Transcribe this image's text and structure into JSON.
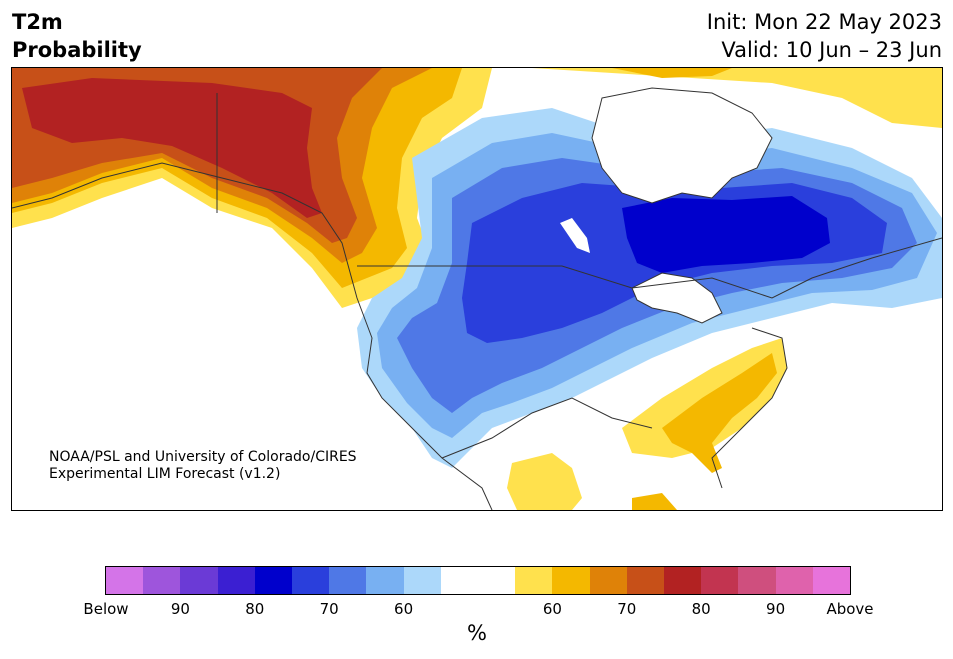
{
  "header": {
    "title_line1": "T2m",
    "title_line2": "Probability",
    "init": "Init: Mon 22 May 2023",
    "valid": "Valid: 10 Jun – 23 Jun"
  },
  "credit": {
    "line1": "NOAA/PSL and University of Colorado/CIRES",
    "line2": "Experimental LIM Forecast (v1.2)"
  },
  "legend": {
    "unit": "%",
    "colors": [
      "#d474e8",
      "#9e55dc",
      "#6b3ad6",
      "#3b1fd2",
      "#0000cc",
      "#2a3fdc",
      "#4f78e6",
      "#78b0f2",
      "#acd8fa",
      "#ffffff",
      "#ffffff",
      "#ffe14d",
      "#f4b800",
      "#df8208",
      "#c75018",
      "#b22222",
      "#c23450",
      "#cf4f7e",
      "#df62ac",
      "#e773db"
    ],
    "labels": [
      {
        "text": "Below",
        "pos": 0.0
      },
      {
        "text": "90",
        "pos": 0.1
      },
      {
        "text": "80",
        "pos": 0.2
      },
      {
        "text": "70",
        "pos": 0.3
      },
      {
        "text": "60",
        "pos": 0.4
      },
      {
        "text": "60",
        "pos": 0.6
      },
      {
        "text": "70",
        "pos": 0.7
      },
      {
        "text": "80",
        "pos": 0.8
      },
      {
        "text": "90",
        "pos": 0.9
      },
      {
        "text": "Above",
        "pos": 1.0
      }
    ]
  },
  "map_colors": {
    "below_60": "#acd8fa",
    "below_70": "#78b0f2",
    "below_80": "#4f78e6",
    "below_90": "#2a3fdc",
    "below_max": "#0000cc",
    "above_60": "#ffe14d",
    "above_70": "#f4b800",
    "above_80": "#df8208",
    "above_90": "#c75018",
    "above_max": "#b22222",
    "neutral": "#ffffff",
    "border": "#333333"
  }
}
